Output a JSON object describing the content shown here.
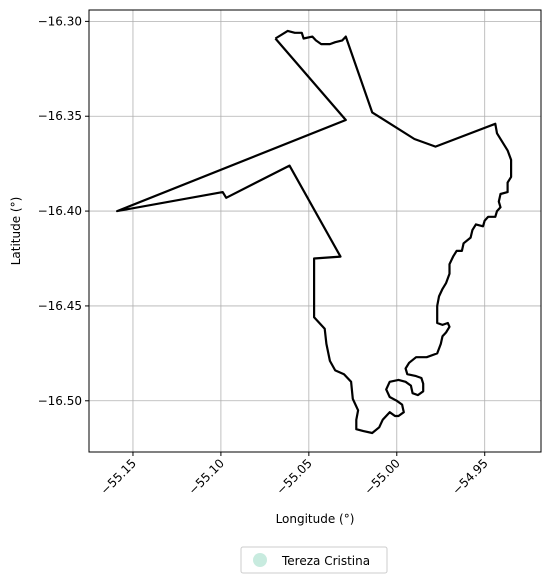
{
  "chart_data": {
    "type": "map",
    "xlabel": "Longitude (°)",
    "ylabel": "Latitude (°)",
    "xlim": [
      -55.175,
      -54.918
    ],
    "ylim": [
      -16.527,
      -16.294
    ],
    "xticks": [
      -55.15,
      -55.1,
      -55.05,
      -55.0,
      -54.95
    ],
    "xtick_labels": [
      "−55.15",
      "−55.10",
      "−55.05",
      "−55.00",
      "−54.95"
    ],
    "yticks": [
      -16.3,
      -16.35,
      -16.4,
      -16.45,
      -16.5
    ],
    "ytick_labels": [
      "−16.30",
      "−16.35",
      "−16.40",
      "−16.45",
      "−16.50"
    ],
    "grid": true,
    "legend": {
      "placement": "bottom-center",
      "entries": [
        {
          "label": "Tereza Cristina",
          "color": "#c8ebdf",
          "marker": "circle"
        }
      ]
    },
    "boundary_color": "#000000",
    "boundary": [
      [
        -55.069,
        -16.309
      ],
      [
        -55.062,
        -16.305
      ],
      [
        -55.058,
        -16.306
      ],
      [
        -55.054,
        -16.306
      ],
      [
        -55.053,
        -16.309
      ],
      [
        -55.048,
        -16.308
      ],
      [
        -55.046,
        -16.31
      ],
      [
        -55.043,
        -16.312
      ],
      [
        -55.038,
        -16.312
      ],
      [
        -55.035,
        -16.311
      ],
      [
        -55.031,
        -16.31
      ],
      [
        -55.029,
        -16.308
      ],
      [
        -55.014,
        -16.348
      ],
      [
        -54.99,
        -16.362
      ],
      [
        -54.978,
        -16.366
      ],
      [
        -54.944,
        -16.354
      ],
      [
        -54.943,
        -16.359
      ],
      [
        -54.937,
        -16.368
      ],
      [
        -54.935,
        -16.373
      ],
      [
        -54.935,
        -16.382
      ],
      [
        -54.937,
        -16.385
      ],
      [
        -54.937,
        -16.39
      ],
      [
        -54.941,
        -16.391
      ],
      [
        -54.942,
        -16.395
      ],
      [
        -54.941,
        -16.398
      ],
      [
        -54.943,
        -16.4
      ],
      [
        -54.944,
        -16.403
      ],
      [
        -54.948,
        -16.403
      ],
      [
        -54.95,
        -16.405
      ],
      [
        -54.951,
        -16.408
      ],
      [
        -54.955,
        -16.407
      ],
      [
        -54.957,
        -16.41
      ],
      [
        -54.958,
        -16.414
      ],
      [
        -54.962,
        -16.417
      ],
      [
        -54.963,
        -16.421
      ],
      [
        -54.966,
        -16.421
      ],
      [
        -54.968,
        -16.424
      ],
      [
        -54.97,
        -16.428
      ],
      [
        -54.97,
        -16.433
      ],
      [
        -54.972,
        -16.438
      ],
      [
        -54.974,
        -16.441
      ],
      [
        -54.976,
        -16.445
      ],
      [
        -54.977,
        -16.45
      ],
      [
        -54.977,
        -16.455
      ],
      [
        -54.977,
        -16.459
      ],
      [
        -54.974,
        -16.46
      ],
      [
        -54.971,
        -16.459
      ],
      [
        -54.97,
        -16.461
      ],
      [
        -54.972,
        -16.464
      ],
      [
        -54.974,
        -16.466
      ],
      [
        -54.975,
        -16.47
      ],
      [
        -54.977,
        -16.475
      ],
      [
        -54.983,
        -16.477
      ],
      [
        -54.989,
        -16.477
      ],
      [
        -54.993,
        -16.48
      ],
      [
        -54.995,
        -16.483
      ],
      [
        -54.994,
        -16.486
      ],
      [
        -54.989,
        -16.487
      ],
      [
        -54.986,
        -16.488
      ],
      [
        -54.985,
        -16.491
      ],
      [
        -54.985,
        -16.495
      ],
      [
        -54.988,
        -16.497
      ],
      [
        -54.991,
        -16.496
      ],
      [
        -54.992,
        -16.492
      ],
      [
        -54.995,
        -16.49
      ],
      [
        -54.999,
        -16.489
      ],
      [
        -55.004,
        -16.49
      ],
      [
        -55.006,
        -16.494
      ],
      [
        -55.004,
        -16.498
      ],
      [
        -55.0,
        -16.5
      ],
      [
        -54.997,
        -16.502
      ],
      [
        -54.996,
        -16.506
      ],
      [
        -54.999,
        -16.508
      ],
      [
        -55.001,
        -16.508
      ],
      [
        -55.004,
        -16.506
      ],
      [
        -55.008,
        -16.51
      ],
      [
        -55.01,
        -16.514
      ],
      [
        -55.014,
        -16.517
      ],
      [
        -55.019,
        -16.516
      ],
      [
        -55.023,
        -16.515
      ],
      [
        -55.023,
        -16.51
      ],
      [
        -55.022,
        -16.505
      ],
      [
        -55.025,
        -16.499
      ],
      [
        -55.026,
        -16.49
      ],
      [
        -55.03,
        -16.486
      ],
      [
        -55.035,
        -16.484
      ],
      [
        -55.038,
        -16.479
      ],
      [
        -55.04,
        -16.47
      ],
      [
        -55.041,
        -16.462
      ],
      [
        -55.047,
        -16.456
      ],
      [
        -55.047,
        -16.425
      ],
      [
        -55.032,
        -16.424
      ],
      [
        -55.061,
        -16.376
      ],
      [
        -55.097,
        -16.393
      ],
      [
        -55.099,
        -16.39
      ],
      [
        -55.159,
        -16.4
      ],
      [
        -55.029,
        -16.352
      ],
      [
        -55.069,
        -16.309
      ]
    ]
  }
}
